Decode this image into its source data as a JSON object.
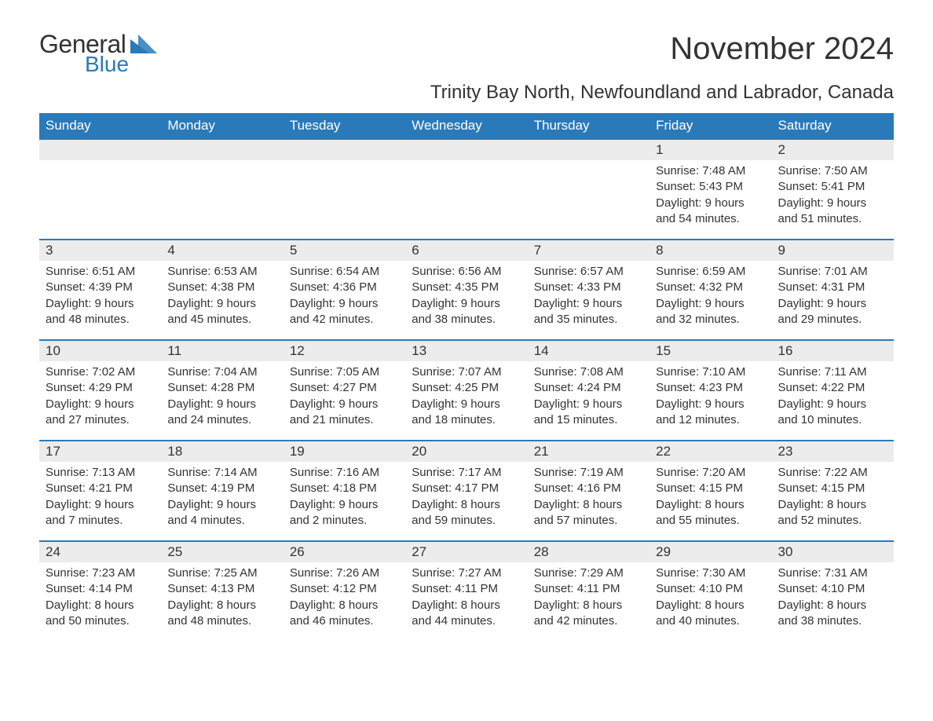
{
  "brand": {
    "name_part1": "General",
    "name_part2": "Blue",
    "icon_color": "#2a7ab9"
  },
  "title": "November 2024",
  "location": "Trinity Bay North, Newfoundland and Labrador, Canada",
  "colors": {
    "header_bg": "#2a7ab9",
    "header_text": "#ffffff",
    "day_number_bg": "#ececec",
    "row_top_border": "#2a7ab9",
    "body_text": "#333333",
    "background": "#ffffff"
  },
  "typography": {
    "title_fontsize": 40,
    "location_fontsize": 24,
    "header_fontsize": 17,
    "daynum_fontsize": 17,
    "body_fontsize": 15,
    "font_family": "Arial"
  },
  "layout": {
    "columns": 7,
    "rows": 5,
    "week_start": "Sunday"
  },
  "weekdays": [
    "Sunday",
    "Monday",
    "Tuesday",
    "Wednesday",
    "Thursday",
    "Friday",
    "Saturday"
  ],
  "weeks": [
    [
      {
        "empty": true
      },
      {
        "empty": true
      },
      {
        "empty": true
      },
      {
        "empty": true
      },
      {
        "empty": true
      },
      {
        "day": 1,
        "sunrise": "Sunrise: 7:48 AM",
        "sunset": "Sunset: 5:43 PM",
        "daylight1": "Daylight: 9 hours",
        "daylight2": "and 54 minutes."
      },
      {
        "day": 2,
        "sunrise": "Sunrise: 7:50 AM",
        "sunset": "Sunset: 5:41 PM",
        "daylight1": "Daylight: 9 hours",
        "daylight2": "and 51 minutes."
      }
    ],
    [
      {
        "day": 3,
        "sunrise": "Sunrise: 6:51 AM",
        "sunset": "Sunset: 4:39 PM",
        "daylight1": "Daylight: 9 hours",
        "daylight2": "and 48 minutes."
      },
      {
        "day": 4,
        "sunrise": "Sunrise: 6:53 AM",
        "sunset": "Sunset: 4:38 PM",
        "daylight1": "Daylight: 9 hours",
        "daylight2": "and 45 minutes."
      },
      {
        "day": 5,
        "sunrise": "Sunrise: 6:54 AM",
        "sunset": "Sunset: 4:36 PM",
        "daylight1": "Daylight: 9 hours",
        "daylight2": "and 42 minutes."
      },
      {
        "day": 6,
        "sunrise": "Sunrise: 6:56 AM",
        "sunset": "Sunset: 4:35 PM",
        "daylight1": "Daylight: 9 hours",
        "daylight2": "and 38 minutes."
      },
      {
        "day": 7,
        "sunrise": "Sunrise: 6:57 AM",
        "sunset": "Sunset: 4:33 PM",
        "daylight1": "Daylight: 9 hours",
        "daylight2": "and 35 minutes."
      },
      {
        "day": 8,
        "sunrise": "Sunrise: 6:59 AM",
        "sunset": "Sunset: 4:32 PM",
        "daylight1": "Daylight: 9 hours",
        "daylight2": "and 32 minutes."
      },
      {
        "day": 9,
        "sunrise": "Sunrise: 7:01 AM",
        "sunset": "Sunset: 4:31 PM",
        "daylight1": "Daylight: 9 hours",
        "daylight2": "and 29 minutes."
      }
    ],
    [
      {
        "day": 10,
        "sunrise": "Sunrise: 7:02 AM",
        "sunset": "Sunset: 4:29 PM",
        "daylight1": "Daylight: 9 hours",
        "daylight2": "and 27 minutes."
      },
      {
        "day": 11,
        "sunrise": "Sunrise: 7:04 AM",
        "sunset": "Sunset: 4:28 PM",
        "daylight1": "Daylight: 9 hours",
        "daylight2": "and 24 minutes."
      },
      {
        "day": 12,
        "sunrise": "Sunrise: 7:05 AM",
        "sunset": "Sunset: 4:27 PM",
        "daylight1": "Daylight: 9 hours",
        "daylight2": "and 21 minutes."
      },
      {
        "day": 13,
        "sunrise": "Sunrise: 7:07 AM",
        "sunset": "Sunset: 4:25 PM",
        "daylight1": "Daylight: 9 hours",
        "daylight2": "and 18 minutes."
      },
      {
        "day": 14,
        "sunrise": "Sunrise: 7:08 AM",
        "sunset": "Sunset: 4:24 PM",
        "daylight1": "Daylight: 9 hours",
        "daylight2": "and 15 minutes."
      },
      {
        "day": 15,
        "sunrise": "Sunrise: 7:10 AM",
        "sunset": "Sunset: 4:23 PM",
        "daylight1": "Daylight: 9 hours",
        "daylight2": "and 12 minutes."
      },
      {
        "day": 16,
        "sunrise": "Sunrise: 7:11 AM",
        "sunset": "Sunset: 4:22 PM",
        "daylight1": "Daylight: 9 hours",
        "daylight2": "and 10 minutes."
      }
    ],
    [
      {
        "day": 17,
        "sunrise": "Sunrise: 7:13 AM",
        "sunset": "Sunset: 4:21 PM",
        "daylight1": "Daylight: 9 hours",
        "daylight2": "and 7 minutes."
      },
      {
        "day": 18,
        "sunrise": "Sunrise: 7:14 AM",
        "sunset": "Sunset: 4:19 PM",
        "daylight1": "Daylight: 9 hours",
        "daylight2": "and 4 minutes."
      },
      {
        "day": 19,
        "sunrise": "Sunrise: 7:16 AM",
        "sunset": "Sunset: 4:18 PM",
        "daylight1": "Daylight: 9 hours",
        "daylight2": "and 2 minutes."
      },
      {
        "day": 20,
        "sunrise": "Sunrise: 7:17 AM",
        "sunset": "Sunset: 4:17 PM",
        "daylight1": "Daylight: 8 hours",
        "daylight2": "and 59 minutes."
      },
      {
        "day": 21,
        "sunrise": "Sunrise: 7:19 AM",
        "sunset": "Sunset: 4:16 PM",
        "daylight1": "Daylight: 8 hours",
        "daylight2": "and 57 minutes."
      },
      {
        "day": 22,
        "sunrise": "Sunrise: 7:20 AM",
        "sunset": "Sunset: 4:15 PM",
        "daylight1": "Daylight: 8 hours",
        "daylight2": "and 55 minutes."
      },
      {
        "day": 23,
        "sunrise": "Sunrise: 7:22 AM",
        "sunset": "Sunset: 4:15 PM",
        "daylight1": "Daylight: 8 hours",
        "daylight2": "and 52 minutes."
      }
    ],
    [
      {
        "day": 24,
        "sunrise": "Sunrise: 7:23 AM",
        "sunset": "Sunset: 4:14 PM",
        "daylight1": "Daylight: 8 hours",
        "daylight2": "and 50 minutes."
      },
      {
        "day": 25,
        "sunrise": "Sunrise: 7:25 AM",
        "sunset": "Sunset: 4:13 PM",
        "daylight1": "Daylight: 8 hours",
        "daylight2": "and 48 minutes."
      },
      {
        "day": 26,
        "sunrise": "Sunrise: 7:26 AM",
        "sunset": "Sunset: 4:12 PM",
        "daylight1": "Daylight: 8 hours",
        "daylight2": "and 46 minutes."
      },
      {
        "day": 27,
        "sunrise": "Sunrise: 7:27 AM",
        "sunset": "Sunset: 4:11 PM",
        "daylight1": "Daylight: 8 hours",
        "daylight2": "and 44 minutes."
      },
      {
        "day": 28,
        "sunrise": "Sunrise: 7:29 AM",
        "sunset": "Sunset: 4:11 PM",
        "daylight1": "Daylight: 8 hours",
        "daylight2": "and 42 minutes."
      },
      {
        "day": 29,
        "sunrise": "Sunrise: 7:30 AM",
        "sunset": "Sunset: 4:10 PM",
        "daylight1": "Daylight: 8 hours",
        "daylight2": "and 40 minutes."
      },
      {
        "day": 30,
        "sunrise": "Sunrise: 7:31 AM",
        "sunset": "Sunset: 4:10 PM",
        "daylight1": "Daylight: 8 hours",
        "daylight2": "and 38 minutes."
      }
    ]
  ]
}
